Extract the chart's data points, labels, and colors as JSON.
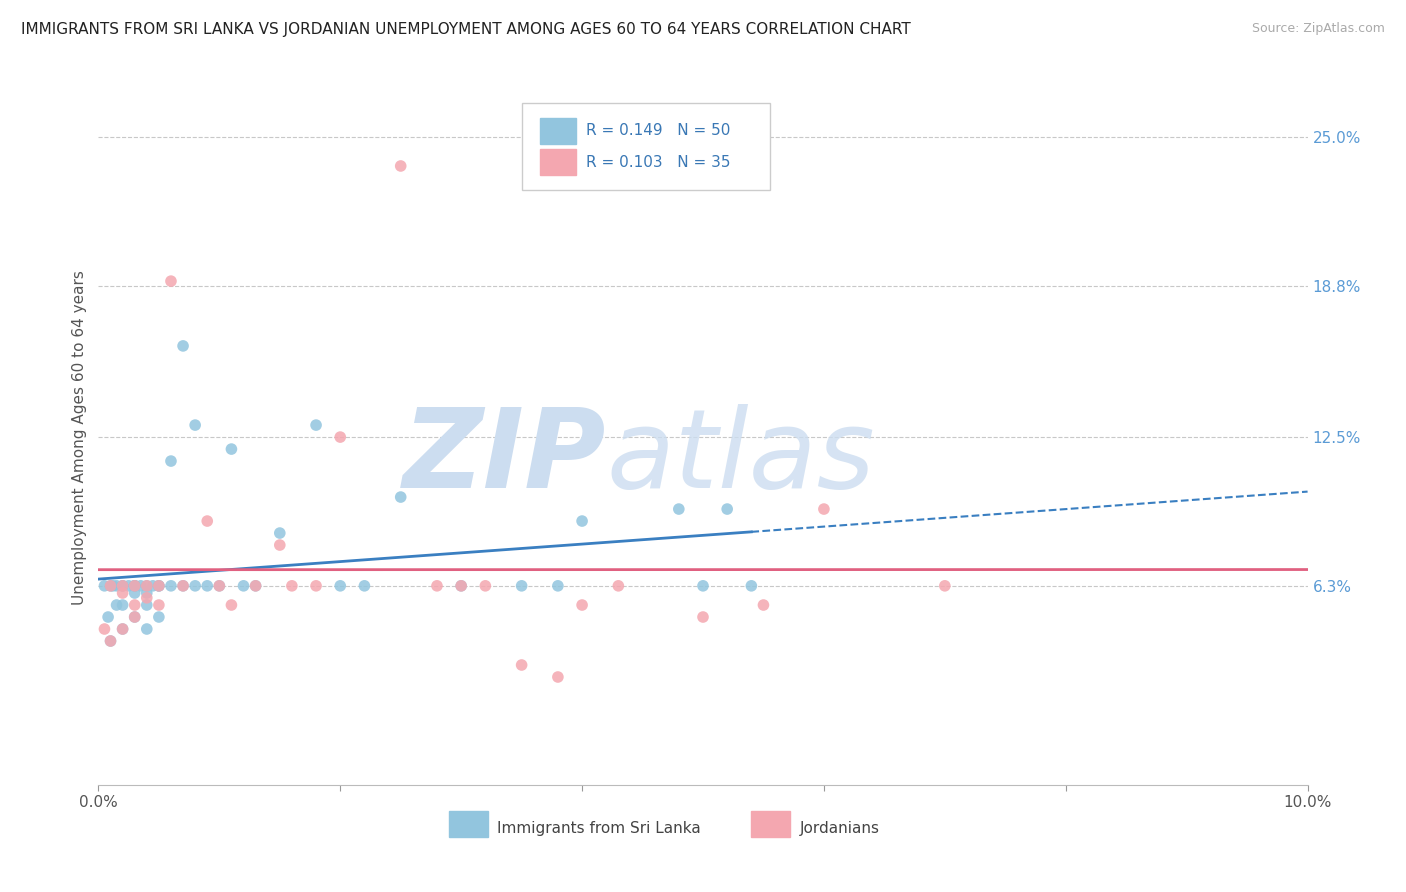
{
  "title": "IMMIGRANTS FROM SRI LANKA VS JORDANIAN UNEMPLOYMENT AMONG AGES 60 TO 64 YEARS CORRELATION CHART",
  "source_text": "Source: ZipAtlas.com",
  "ylabel": "Unemployment Among Ages 60 to 64 years",
  "xlim": [
    0.0,
    0.1
  ],
  "ylim": [
    -0.02,
    0.27
  ],
  "ytick_labels_right": [
    "6.3%",
    "12.5%",
    "18.8%",
    "25.0%"
  ],
  "ytick_vals_right": [
    0.063,
    0.125,
    0.188,
    0.25
  ],
  "series1_color": "#92c5de",
  "series2_color": "#f4a7b0",
  "trend1_color": "#3a7fc1",
  "trend2_color": "#e06080",
  "legend_label1": "Immigrants from Sri Lanka",
  "legend_label2": "Jordanians",
  "legend_R1": "R = 0.149",
  "legend_N1": "N = 50",
  "legend_R2": "R = 0.103",
  "legend_N2": "N = 35",
  "background_color": "#ffffff",
  "grid_color": "#c8c8c8",
  "series1_x": [
    0.0005,
    0.0008,
    0.001,
    0.001,
    0.0012,
    0.0015,
    0.0015,
    0.002,
    0.002,
    0.002,
    0.002,
    0.0025,
    0.003,
    0.003,
    0.003,
    0.003,
    0.003,
    0.0035,
    0.004,
    0.004,
    0.004,
    0.004,
    0.0045,
    0.005,
    0.005,
    0.005,
    0.006,
    0.006,
    0.007,
    0.007,
    0.008,
    0.008,
    0.009,
    0.01,
    0.011,
    0.012,
    0.013,
    0.015,
    0.018,
    0.02,
    0.022,
    0.025,
    0.03,
    0.035,
    0.038,
    0.04,
    0.048,
    0.05,
    0.052,
    0.054
  ],
  "series1_y": [
    0.063,
    0.05,
    0.063,
    0.04,
    0.063,
    0.063,
    0.055,
    0.063,
    0.063,
    0.055,
    0.045,
    0.063,
    0.063,
    0.063,
    0.063,
    0.06,
    0.05,
    0.063,
    0.063,
    0.06,
    0.055,
    0.045,
    0.063,
    0.063,
    0.063,
    0.05,
    0.115,
    0.063,
    0.163,
    0.063,
    0.13,
    0.063,
    0.063,
    0.063,
    0.12,
    0.063,
    0.063,
    0.085,
    0.13,
    0.063,
    0.063,
    0.1,
    0.063,
    0.063,
    0.063,
    0.09,
    0.095,
    0.063,
    0.095,
    0.063
  ],
  "series2_x": [
    0.0005,
    0.001,
    0.001,
    0.002,
    0.002,
    0.002,
    0.003,
    0.003,
    0.003,
    0.004,
    0.004,
    0.005,
    0.005,
    0.006,
    0.007,
    0.009,
    0.01,
    0.011,
    0.013,
    0.015,
    0.016,
    0.018,
    0.02,
    0.025,
    0.028,
    0.03,
    0.032,
    0.035,
    0.038,
    0.04,
    0.043,
    0.05,
    0.055,
    0.06,
    0.07
  ],
  "series2_y": [
    0.045,
    0.063,
    0.04,
    0.063,
    0.06,
    0.045,
    0.063,
    0.055,
    0.05,
    0.063,
    0.058,
    0.063,
    0.055,
    0.19,
    0.063,
    0.09,
    0.063,
    0.055,
    0.063,
    0.08,
    0.063,
    0.063,
    0.125,
    0.238,
    0.063,
    0.063,
    0.063,
    0.03,
    0.025,
    0.055,
    0.063,
    0.05,
    0.055,
    0.095,
    0.063
  ]
}
